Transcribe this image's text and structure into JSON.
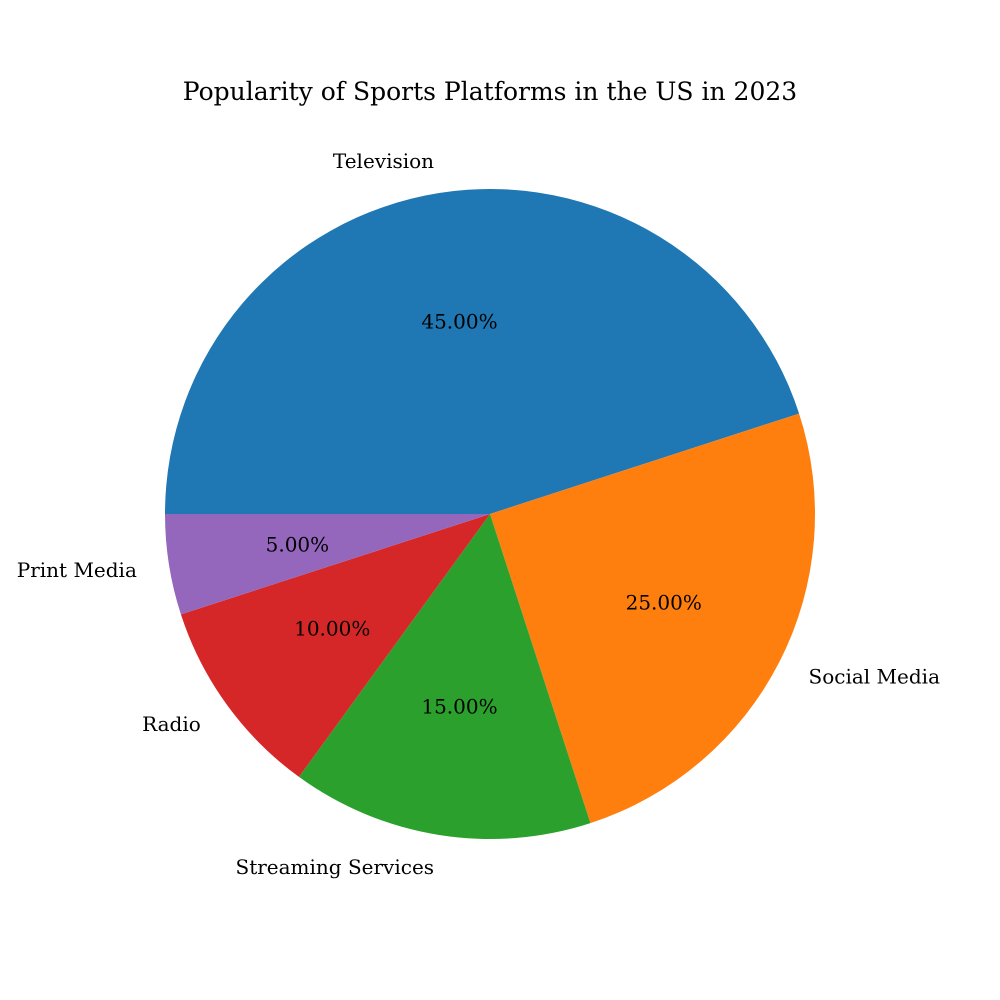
{
  "chart_data": {
    "type": "pie",
    "title": "Popularity of Sports Platforms in the US in 2023",
    "categories": [
      "Television",
      "Social Media",
      "Streaming Services",
      "Radio",
      "Print Media"
    ],
    "values": [
      45,
      25,
      15,
      10,
      5
    ],
    "value_labels": [
      "45.00%",
      "25.00%",
      "15.00%",
      "10.00%",
      "5.00%"
    ],
    "colors": [
      "#1f77b4",
      "#ff7f0e",
      "#2ca02c",
      "#d62728",
      "#9467bd"
    ],
    "start_angle_deg": 180,
    "direction": "clockwise",
    "legend": "none"
  }
}
